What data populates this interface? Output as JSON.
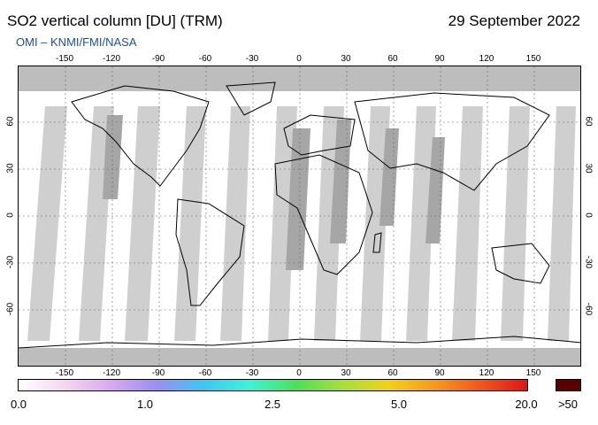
{
  "header": {
    "title": "SO2 vertical column [DU] (TRM)",
    "date": "29 September 2022",
    "credit": "OMI  –  KNMI/FMI/NASA"
  },
  "map": {
    "longitude_ticks": [
      "-150",
      "-120",
      "-90",
      "-60",
      "-30",
      "0",
      "30",
      "60",
      "90",
      "120",
      "150"
    ],
    "latitude_ticks": [
      "60",
      "30",
      "0",
      "-30",
      "-60"
    ],
    "colors": {
      "land_outline": "#000000",
      "no_data_gap": "#cfcfcf",
      "overlap_band": "#a6a6a6",
      "polar_night": "#bdbdbd",
      "background": "#ffffff"
    }
  },
  "colorbar": {
    "labels": [
      "0.0",
      "1.0",
      "2.5",
      "5.0",
      "20.0"
    ],
    "overflow_label": ">50",
    "gradient_colors": [
      "#ffffff",
      "#f5d6f2",
      "#d9a8f0",
      "#9a8ff0",
      "#3fc6f5",
      "#3ef3d8",
      "#4de05a",
      "#a6e03a",
      "#f2d11a",
      "#f59a1f",
      "#f0571d",
      "#e0141a"
    ],
    "overflow_color": "#5a0000"
  }
}
